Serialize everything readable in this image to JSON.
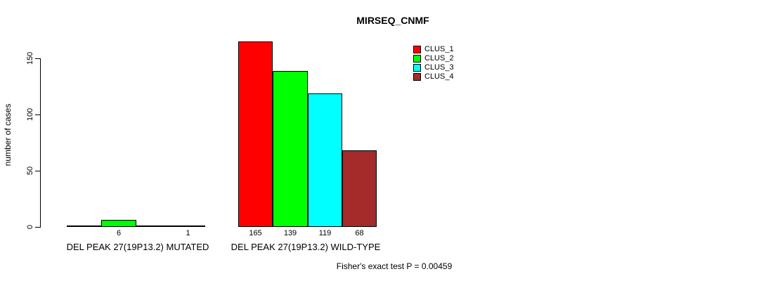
{
  "chart_data": {
    "type": "bar",
    "title": "MIRSEQ_CNMF",
    "ylabel": "number of cases",
    "xlabel": "",
    "ylim": [
      0,
      150
    ],
    "yticks": [
      0,
      50,
      100,
      150
    ],
    "grid": false,
    "legend_position": "top-right",
    "legend": [
      "CLUS_1",
      "CLUS_2",
      "CLUS_3",
      "CLUS_4"
    ],
    "series_colors": [
      "#ff0000",
      "#00ff00",
      "#00ffff",
      "#a52a2a"
    ],
    "axis_color": "#000000",
    "groups": [
      {
        "label": "DEL PEAK 27(19P13.2) MUTATED",
        "values": [
          0,
          6,
          0,
          1
        ],
        "bar_labels": [
          "",
          "6",
          "",
          "1"
        ]
      },
      {
        "label": "DEL PEAK 27(19P13.2) WILD-TYPE",
        "values": [
          165,
          139,
          119,
          68
        ],
        "bar_labels": [
          "165",
          "139",
          "119",
          "68"
        ]
      }
    ],
    "annotation": "Fisher's exact test P = 0.00459"
  }
}
